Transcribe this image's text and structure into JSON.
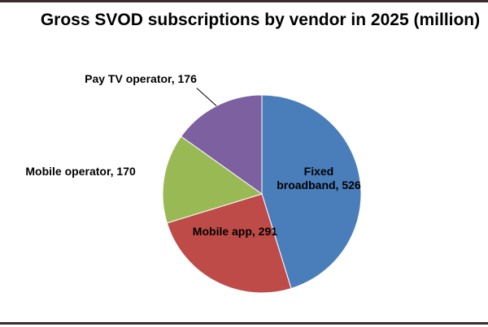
{
  "chart_data": {
    "type": "pie",
    "title": "Gross SVOD subscriptions by vendor in 2025 (million)",
    "values": [
      526,
      291,
      170,
      176
    ],
    "value_labels": [
      "Fixed broadband, 526",
      "Mobile app, 291",
      "Mobile operator, 170",
      "Pay TV operator, 176"
    ],
    "colors": [
      "#4a7ebb",
      "#be4b48",
      "#98b954",
      "#7d60a0"
    ]
  }
}
